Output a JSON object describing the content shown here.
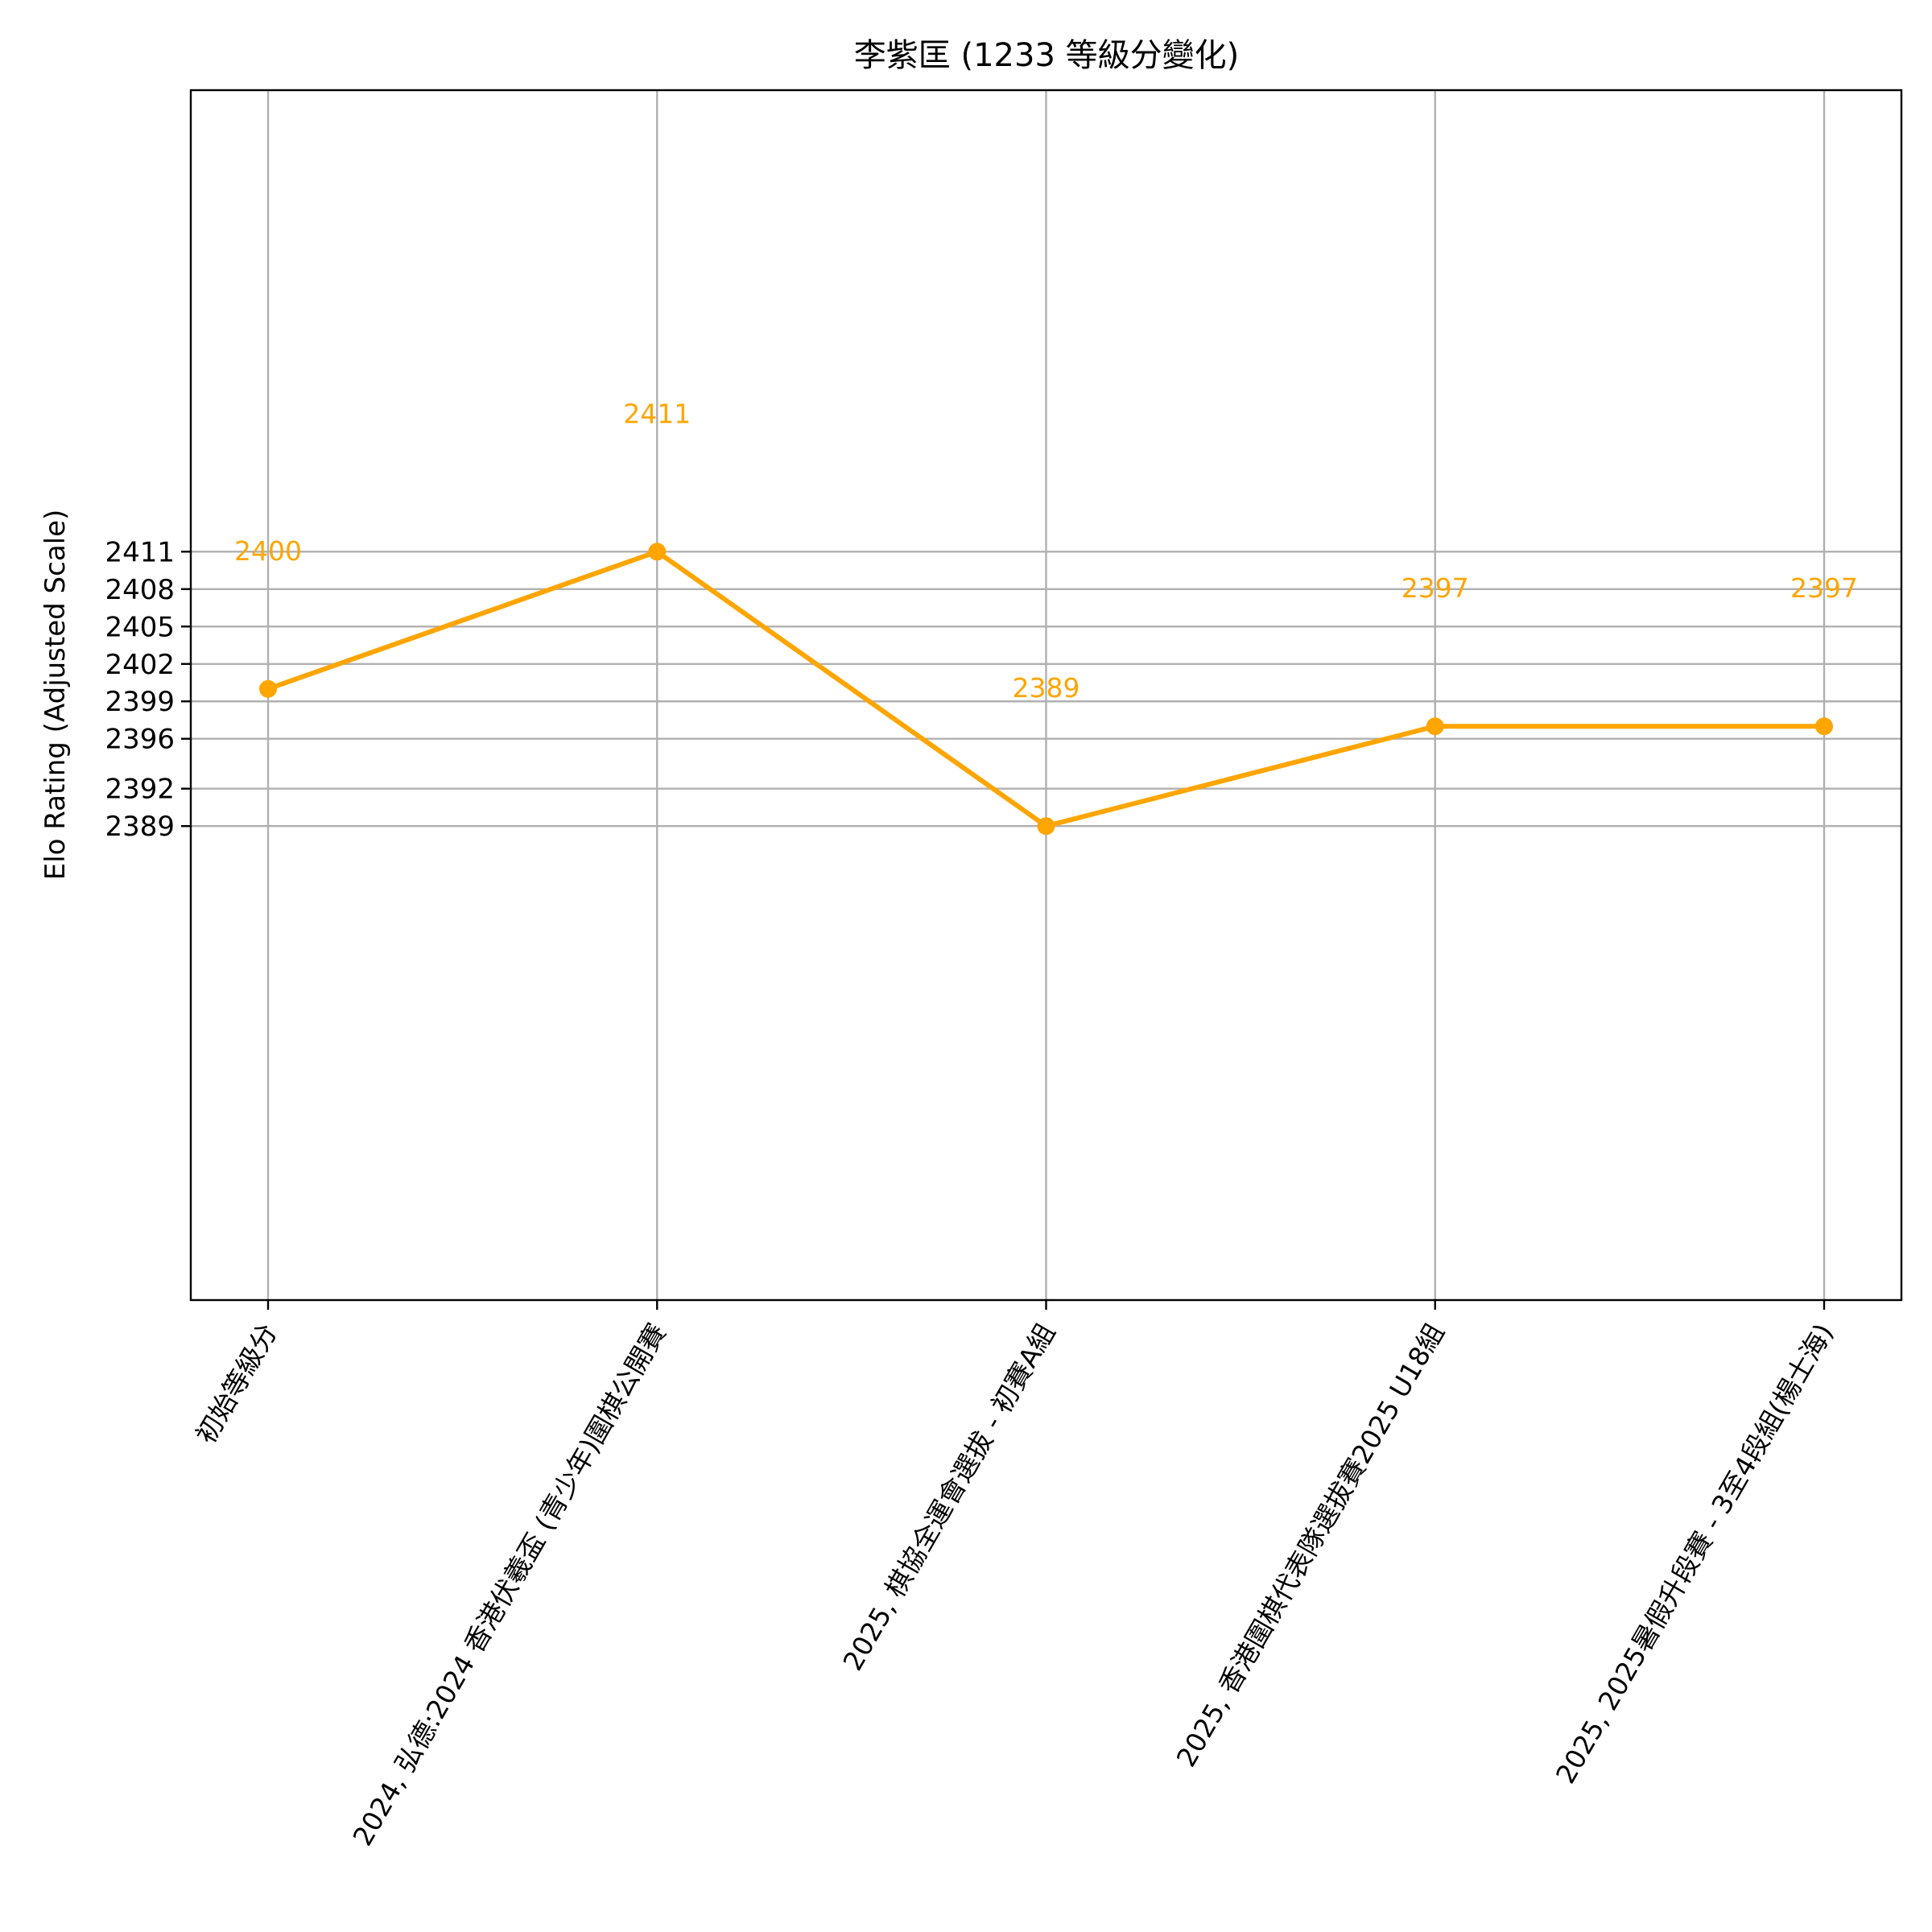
{
  "chart_data": {
    "type": "line",
    "title": "李紫匡 (1233 等級分變化)",
    "xlabel": "",
    "ylabel": "Elo Rating (Adjusted Scale)",
    "categories": [
      "初始等級分",
      "2024, 弘德:2024 香港伏羲盃 (青少年)圍棋公開賽",
      "2025, 棋協全運會選拔 - 初賽A組",
      "2025, 香港圍棋代表隊選拔賽2025 U18組",
      "2025, 2025暑假升段賽 - 3至4段組(楊士海)"
    ],
    "series": [
      {
        "values": [
          2400,
          2411,
          2389,
          2397,
          2397
        ],
        "color": "#ffa500"
      }
    ],
    "data_labels": [
      "2400",
      "2411",
      "2389",
      "2397",
      "2397"
    ],
    "yticks": [
      2389,
      2392,
      2396,
      2399,
      2402,
      2405,
      2408,
      2411
    ],
    "ylim": [
      2351,
      2448
    ],
    "grid": true,
    "legend": "none"
  }
}
